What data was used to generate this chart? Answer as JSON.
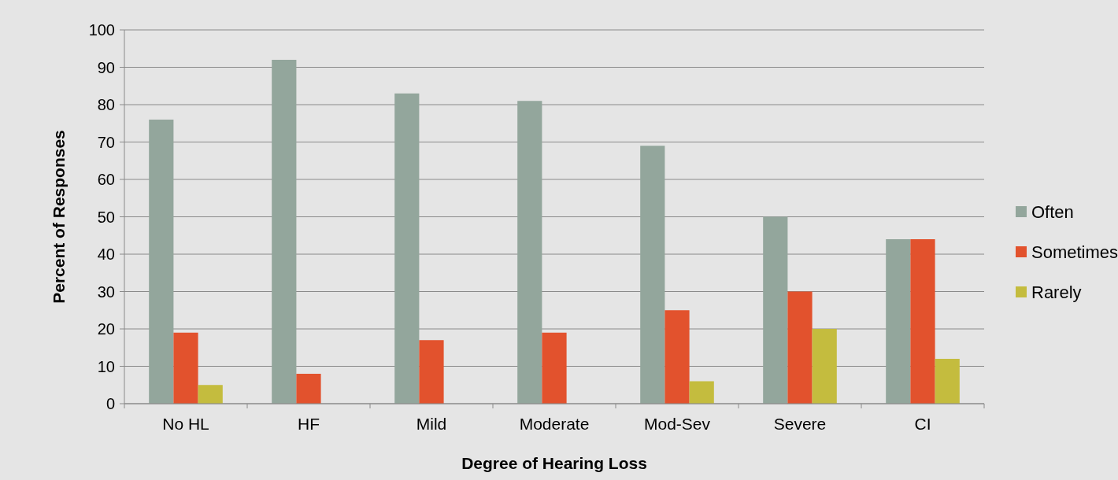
{
  "chart_data": {
    "type": "bar",
    "xlabel": "Degree of Hearing Loss",
    "ylabel": "Percent of Responses",
    "categories": [
      "No HL",
      "HF",
      "Mild",
      "Moderate",
      "Mod-Sev",
      "Severe",
      "CI"
    ],
    "series": [
      {
        "name": "Often",
        "color": "#93a69c",
        "values": [
          76,
          92,
          83,
          81,
          69,
          50,
          44
        ]
      },
      {
        "name": "Sometimes",
        "color": "#e2522d",
        "values": [
          19,
          8,
          17,
          19,
          25,
          30,
          44
        ]
      },
      {
        "name": "Rarely",
        "color": "#c4bc3e",
        "values": [
          5,
          0,
          0,
          0,
          6,
          20,
          12
        ]
      }
    ],
    "ylim": [
      0,
      100
    ],
    "yticks": [
      0,
      10,
      20,
      30,
      40,
      50,
      60,
      70,
      80,
      90,
      100
    ],
    "grid": "y",
    "legend": "right"
  }
}
